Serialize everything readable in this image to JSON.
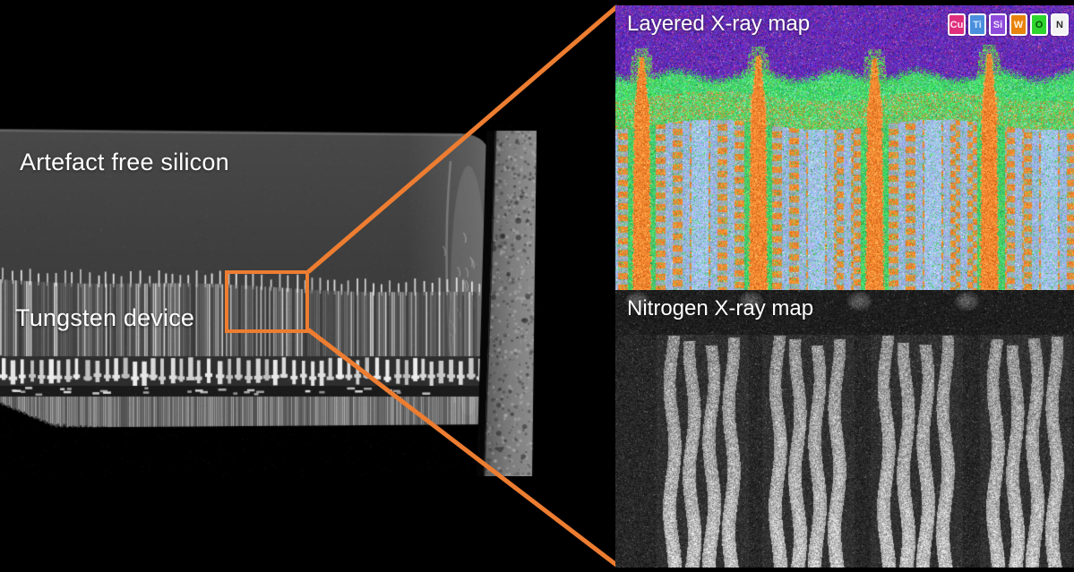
{
  "figure": {
    "background": "#000000",
    "accent_color": "#ED7D31"
  },
  "sem_panel": {
    "silicon_label": "Artefact free silicon",
    "tungsten_label": "Tungsten device"
  },
  "layered_panel": {
    "title": "Layered X-ray map",
    "legend": [
      {
        "symbol": "Cu",
        "color": "#DF2F7D",
        "text_color": "#FFE2F0"
      },
      {
        "symbol": "Ti",
        "color": "#4A8FDC",
        "text_color": "#CDE5FF"
      },
      {
        "symbol": "Si",
        "color": "#8F4BDC",
        "text_color": "#F0E6FF"
      },
      {
        "symbol": "W",
        "color": "#E8830E",
        "text_color": "#FFF3E0"
      },
      {
        "symbol": "O",
        "color": "#2ED52E",
        "text_color": "#0A4D0A"
      },
      {
        "symbol": "N",
        "color": "#F2F2F2",
        "text_color": "#2B2B2B"
      }
    ]
  },
  "nitrogen_panel": {
    "title": "Nitrogen X-ray map"
  },
  "map_palette": {
    "silicon_purple": "#5B1FA3",
    "oxygen_green": "#2FC95A",
    "tungsten_orange": "#E07A1A",
    "titanium_blue": "#92A8D8",
    "copper_pink": "#D23C96"
  }
}
